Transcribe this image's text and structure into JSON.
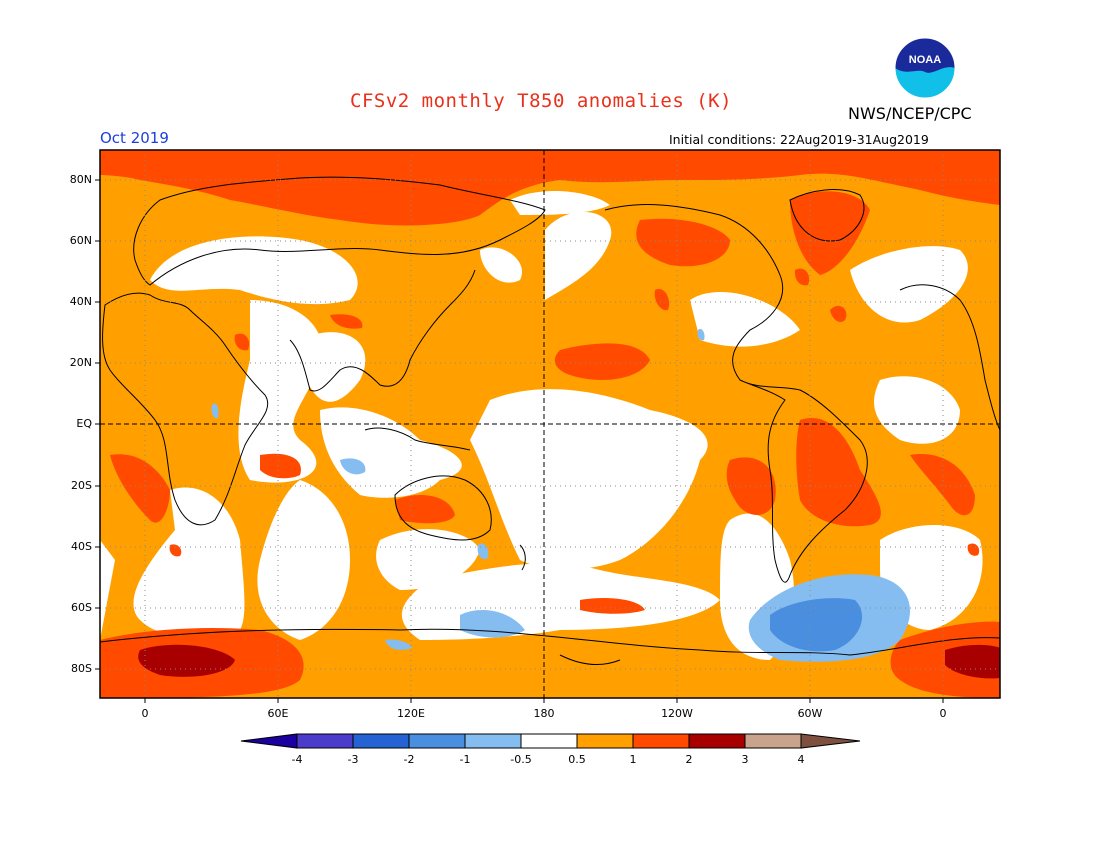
{
  "header": {
    "title": "CFSv2 monthly T850 anomalies (K)",
    "agency": "NWS/NCEP/CPC",
    "logo_text": "NOAA",
    "month": "Oct 2019",
    "initial_conditions": "Initial conditions: 22Aug2019-31Aug2019"
  },
  "map": {
    "projection": "cylindrical equidistant",
    "lat_labels": [
      "80N",
      "60N",
      "40N",
      "20N",
      "EQ",
      "20S",
      "40S",
      "60S",
      "80S"
    ],
    "lon_labels": [
      "0",
      "60E",
      "120E",
      "180",
      "120W",
      "60W",
      "0"
    ],
    "gridlines": "dotted",
    "reference_lines": [
      "Equator",
      "180"
    ]
  },
  "colorbar": {
    "labels": [
      "-4",
      "-3",
      "-2",
      "-1",
      "-0.5",
      "0.5",
      "1",
      "2",
      "3",
      "4"
    ],
    "colors": [
      "#1c00a0",
      "#4b3ccc",
      "#2563d4",
      "#4a8ee0",
      "#85bdf0",
      "#ffffff",
      "#ffa000",
      "#ff4a00",
      "#a80000",
      "#c9a38c",
      "#7d5040"
    ],
    "units": "K"
  }
}
